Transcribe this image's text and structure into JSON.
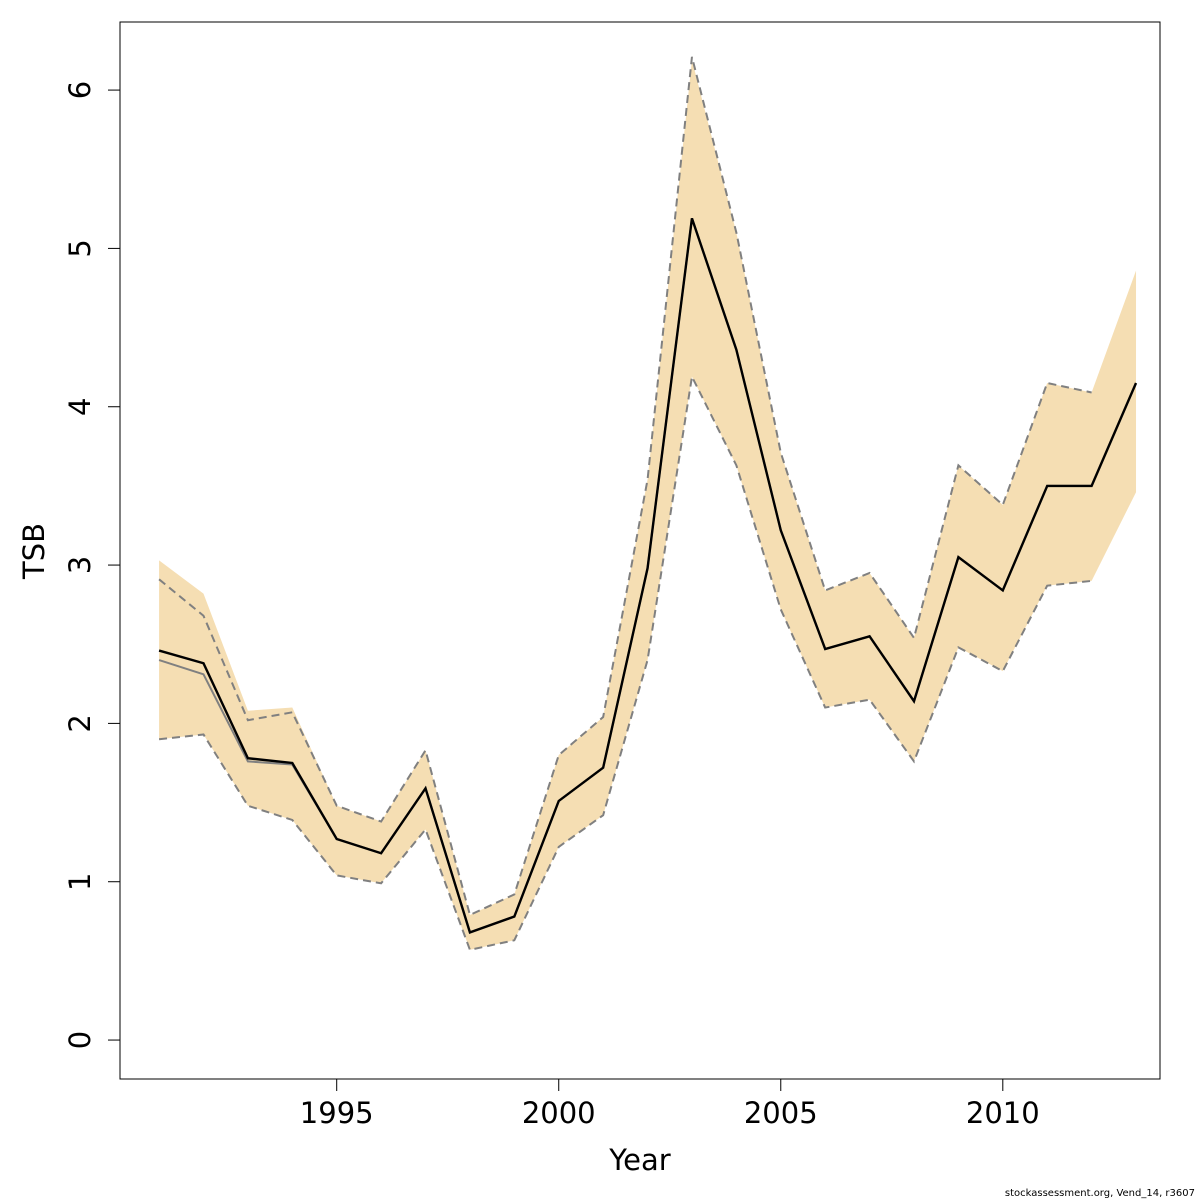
{
  "chart_data": {
    "type": "line",
    "xlabel": "Year",
    "ylabel": "TSB",
    "footnote": "stockassessment.org, Vend_14, r3607",
    "x": [
      1991,
      1992,
      1993,
      1994,
      1995,
      1996,
      1997,
      1998,
      1999,
      2000,
      2001,
      2002,
      2003,
      2004,
      2005,
      2006,
      2007,
      2008,
      2009,
      2010,
      2011,
      2012,
      2013
    ],
    "band": {
      "color": "#f5deb3",
      "upper": [
        3.03,
        2.82,
        2.08,
        2.1,
        1.48,
        1.38,
        1.83,
        0.79,
        0.92,
        1.8,
        2.04,
        3.54,
        6.19,
        5.1,
        3.71,
        2.84,
        2.95,
        2.54,
        3.63,
        3.38,
        4.15,
        4.09,
        4.86
      ],
      "lower": [
        1.9,
        1.93,
        1.48,
        1.39,
        1.04,
        0.99,
        1.33,
        0.57,
        0.63,
        1.22,
        1.42,
        2.4,
        4.19,
        3.63,
        2.72,
        2.1,
        2.15,
        1.76,
        2.48,
        2.33,
        2.87,
        2.9,
        3.46
      ]
    },
    "series": [
      {
        "color": "#808080",
        "dashed": true,
        "values": [
          2.91,
          2.68,
          2.02,
          2.07,
          1.48,
          1.38,
          1.83,
          0.79,
          0.92,
          1.8,
          2.04,
          3.54,
          6.21,
          5.1,
          3.71,
          2.84,
          2.95,
          2.54,
          3.63,
          3.38,
          4.15,
          4.09,
          null
        ]
      },
      {
        "color": "#808080",
        "dashed": true,
        "values": [
          1.9,
          1.93,
          1.48,
          1.39,
          1.04,
          0.99,
          1.33,
          0.57,
          0.63,
          1.22,
          1.42,
          2.4,
          4.19,
          3.63,
          2.72,
          2.1,
          2.15,
          1.76,
          2.48,
          2.33,
          2.87,
          2.9,
          null
        ]
      },
      {
        "color": "#808080",
        "dashed": false,
        "values": [
          2.4,
          2.31,
          1.76,
          1.74,
          1.27,
          1.18,
          1.59,
          0.68,
          0.78,
          1.51,
          1.72,
          2.98,
          5.19,
          4.36,
          3.22,
          2.47,
          2.55,
          2.14,
          3.05,
          2.84,
          3.5,
          3.5,
          null
        ]
      },
      {
        "color": "#000000",
        "dashed": false,
        "values": [
          2.46,
          2.38,
          1.78,
          1.75,
          1.27,
          1.18,
          1.59,
          0.68,
          0.78,
          1.51,
          1.72,
          2.98,
          5.19,
          4.36,
          3.22,
          2.47,
          2.55,
          2.14,
          3.05,
          2.84,
          3.5,
          3.5,
          4.15
        ]
      }
    ],
    "xlim": [
      1990.12,
      2013.54
    ],
    "ylim": [
      -0.246,
      6.43
    ],
    "xticks": [
      1995,
      2000,
      2005,
      2010
    ],
    "yticks": [
      0,
      1,
      2,
      3,
      4,
      5,
      6
    ]
  }
}
